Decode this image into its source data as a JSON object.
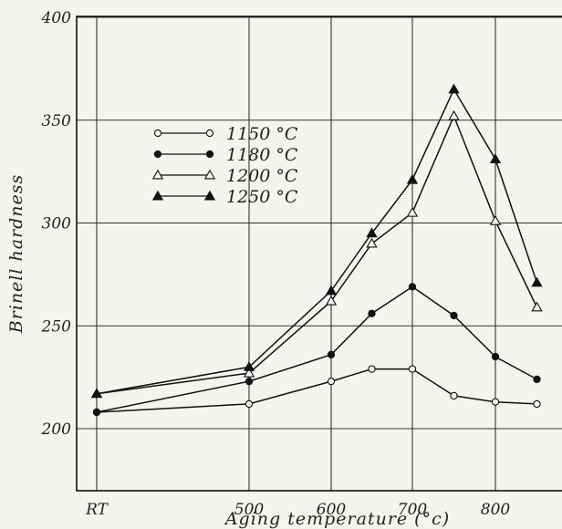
{
  "chart_data": {
    "type": "line",
    "title": "",
    "xlabel": "Aging temperature (°c)",
    "ylabel": "Brinell hardness",
    "x_ticks": [
      {
        "x": 0,
        "label": "RT"
      },
      {
        "x": 500,
        "label": "500"
      },
      {
        "x": 600,
        "label": "600"
      },
      {
        "x": 700,
        "label": "700"
      },
      {
        "x": 800,
        "label": "800"
      }
    ],
    "y_ticks": [
      200,
      250,
      300,
      350,
      400
    ],
    "ylim": [
      180,
      400
    ],
    "grid": true,
    "legend_position": "upper-left",
    "series": [
      {
        "name": "1150 °C",
        "marker": "circle-open",
        "points": [
          [
            0,
            208
          ],
          [
            500,
            212
          ],
          [
            600,
            223
          ],
          [
            650,
            229
          ],
          [
            700,
            229
          ],
          [
            750,
            216
          ],
          [
            800,
            213
          ],
          [
            850,
            212
          ]
        ]
      },
      {
        "name": "1180 °C",
        "marker": "circle-filled",
        "points": [
          [
            0,
            208
          ],
          [
            500,
            223
          ],
          [
            600,
            236
          ],
          [
            650,
            256
          ],
          [
            700,
            269
          ],
          [
            750,
            255
          ],
          [
            800,
            235
          ],
          [
            850,
            224
          ]
        ]
      },
      {
        "name": "1200 °C",
        "marker": "triangle-open",
        "points": [
          [
            0,
            217
          ],
          [
            500,
            227
          ],
          [
            600,
            262
          ],
          [
            650,
            290
          ],
          [
            700,
            305
          ],
          [
            750,
            352
          ],
          [
            800,
            301
          ],
          [
            850,
            259
          ]
        ]
      },
      {
        "name": "1250 °C",
        "marker": "triangle-filled",
        "points": [
          [
            0,
            217
          ],
          [
            500,
            230
          ],
          [
            600,
            267
          ],
          [
            650,
            295
          ],
          [
            700,
            321
          ],
          [
            750,
            365
          ],
          [
            800,
            331
          ],
          [
            850,
            271
          ]
        ]
      }
    ]
  }
}
